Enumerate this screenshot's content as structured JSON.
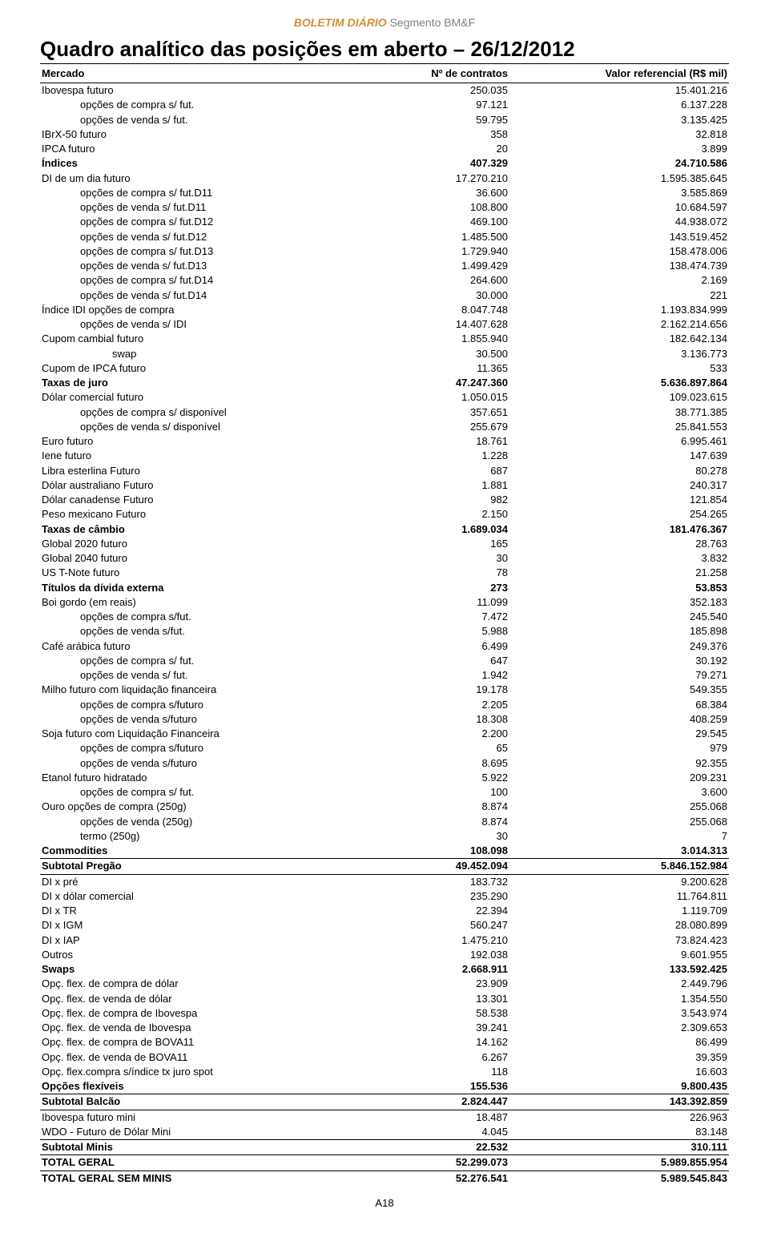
{
  "header": {
    "brand": "BOLETIM DIÁRIO",
    "segment": " Segmento BM&F"
  },
  "title": "Quadro analítico das posições em aberto – 26/12/2012",
  "columns": {
    "c0": "Mercado",
    "c1": "Nº de contratos",
    "c2": "Valor referencial (R$ mil)"
  },
  "footer": "A18",
  "rows": [
    {
      "label": "Ibovespa futuro",
      "v1": "250.035",
      "v2": "15.401.216",
      "indent": 0,
      "bold": false,
      "sep": false
    },
    {
      "label": "opções de compra s/ fut.",
      "v1": "97.121",
      "v2": "6.137.228",
      "indent": 1,
      "bold": false,
      "sep": false
    },
    {
      "label": "opções de venda s/ fut.",
      "v1": "59.795",
      "v2": "3.135.425",
      "indent": 1,
      "bold": false,
      "sep": false
    },
    {
      "label": "IBrX-50 futuro",
      "v1": "358",
      "v2": "32.818",
      "indent": 0,
      "bold": false,
      "sep": false
    },
    {
      "label": "IPCA futuro",
      "v1": "20",
      "v2": "3.899",
      "indent": 0,
      "bold": false,
      "sep": false
    },
    {
      "label": "Índices",
      "v1": "407.329",
      "v2": "24.710.586",
      "indent": 0,
      "bold": true,
      "sep": false
    },
    {
      "label": "DI de um dia futuro",
      "v1": "17.270.210",
      "v2": "1.595.385.645",
      "indent": 0,
      "bold": false,
      "sep": false
    },
    {
      "label": "opções de compra s/ fut.D11",
      "v1": "36.600",
      "v2": "3.585.869",
      "indent": 1,
      "bold": false,
      "sep": false
    },
    {
      "label": "opções de venda s/ fut.D11",
      "v1": "108.800",
      "v2": "10.684.597",
      "indent": 1,
      "bold": false,
      "sep": false
    },
    {
      "label": "opções de compra s/ fut.D12",
      "v1": "469.100",
      "v2": "44.938.072",
      "indent": 1,
      "bold": false,
      "sep": false
    },
    {
      "label": "opções de venda s/ fut.D12",
      "v1": "1.485.500",
      "v2": "143.519.452",
      "indent": 1,
      "bold": false,
      "sep": false
    },
    {
      "label": "opções de compra s/ fut.D13",
      "v1": "1.729.940",
      "v2": "158.478.006",
      "indent": 1,
      "bold": false,
      "sep": false
    },
    {
      "label": "opções de venda s/ fut.D13",
      "v1": "1.499.429",
      "v2": "138.474.739",
      "indent": 1,
      "bold": false,
      "sep": false
    },
    {
      "label": "opções de compra s/ fut.D14",
      "v1": "264.600",
      "v2": "2.169",
      "indent": 1,
      "bold": false,
      "sep": false
    },
    {
      "label": "opções de venda s/ fut.D14",
      "v1": "30.000",
      "v2": "221",
      "indent": 1,
      "bold": false,
      "sep": false
    },
    {
      "label": "Índice IDI opções de compra",
      "v1": "8.047.748",
      "v2": "1.193.834.999",
      "indent": 0,
      "bold": false,
      "sep": false
    },
    {
      "label": "opções de venda s/ IDI",
      "v1": "14.407.628",
      "v2": "2.162.214.656",
      "indent": 1,
      "bold": false,
      "sep": false
    },
    {
      "label": "Cupom cambial futuro",
      "v1": "1.855.940",
      "v2": "182.642.134",
      "indent": 0,
      "bold": false,
      "sep": false
    },
    {
      "label": "swap",
      "v1": "30.500",
      "v2": "3.136.773",
      "indent": 2,
      "bold": false,
      "sep": false
    },
    {
      "label": "Cupom de IPCA futuro",
      "v1": "11.365",
      "v2": "533",
      "indent": 0,
      "bold": false,
      "sep": false
    },
    {
      "label": "Taxas de juro",
      "v1": "47.247.360",
      "v2": "5.636.897.864",
      "indent": 0,
      "bold": true,
      "sep": false
    },
    {
      "label": "Dólar comercial futuro",
      "v1": "1.050.015",
      "v2": "109.023.615",
      "indent": 0,
      "bold": false,
      "sep": false
    },
    {
      "label": "opções de compra s/ disponível",
      "v1": "357.651",
      "v2": "38.771.385",
      "indent": 1,
      "bold": false,
      "sep": false
    },
    {
      "label": "opções de venda s/ disponível",
      "v1": "255.679",
      "v2": "25.841.553",
      "indent": 1,
      "bold": false,
      "sep": false
    },
    {
      "label": "Euro futuro",
      "v1": "18.761",
      "v2": "6.995.461",
      "indent": 0,
      "bold": false,
      "sep": false
    },
    {
      "label": "Iene futuro",
      "v1": "1.228",
      "v2": "147.639",
      "indent": 0,
      "bold": false,
      "sep": false
    },
    {
      "label": "Libra esterlina Futuro",
      "v1": "687",
      "v2": "80.278",
      "indent": 0,
      "bold": false,
      "sep": false
    },
    {
      "label": "Dólar australiano Futuro",
      "v1": "1.881",
      "v2": "240.317",
      "indent": 0,
      "bold": false,
      "sep": false
    },
    {
      "label": "Dólar canadense Futuro",
      "v1": "982",
      "v2": "121.854",
      "indent": 0,
      "bold": false,
      "sep": false
    },
    {
      "label": "Peso mexicano Futuro",
      "v1": "2.150",
      "v2": "254.265",
      "indent": 0,
      "bold": false,
      "sep": false
    },
    {
      "label": "Taxas de câmbio",
      "v1": "1.689.034",
      "v2": "181.476.367",
      "indent": 0,
      "bold": true,
      "sep": false
    },
    {
      "label": "Global 2020 futuro",
      "v1": "165",
      "v2": "28.763",
      "indent": 0,
      "bold": false,
      "sep": false
    },
    {
      "label": "Global 2040 futuro",
      "v1": "30",
      "v2": "3.832",
      "indent": 0,
      "bold": false,
      "sep": false
    },
    {
      "label": "US T-Note futuro",
      "v1": "78",
      "v2": "21.258",
      "indent": 0,
      "bold": false,
      "sep": false
    },
    {
      "label": "Títulos da dívida externa",
      "v1": "273",
      "v2": "53.853",
      "indent": 0,
      "bold": true,
      "sep": false
    },
    {
      "label": "Boi gordo (em reais)",
      "v1": "11.099",
      "v2": "352.183",
      "indent": 0,
      "bold": false,
      "sep": false
    },
    {
      "label": "opções de compra s/fut.",
      "v1": "7.472",
      "v2": "245.540",
      "indent": 1,
      "bold": false,
      "sep": false
    },
    {
      "label": "opções de venda s/fut.",
      "v1": "5.988",
      "v2": "185.898",
      "indent": 1,
      "bold": false,
      "sep": false
    },
    {
      "label": "Café arábica futuro",
      "v1": "6.499",
      "v2": "249.376",
      "indent": 0,
      "bold": false,
      "sep": false
    },
    {
      "label": "opções de compra s/ fut.",
      "v1": "647",
      "v2": "30.192",
      "indent": 1,
      "bold": false,
      "sep": false
    },
    {
      "label": "opções de venda s/ fut.",
      "v1": "1.942",
      "v2": "79.271",
      "indent": 1,
      "bold": false,
      "sep": false
    },
    {
      "label": "Milho futuro com liquidação financeira",
      "v1": "19.178",
      "v2": "549.355",
      "indent": 0,
      "bold": false,
      "sep": false
    },
    {
      "label": "opções de compra s/futuro",
      "v1": "2.205",
      "v2": "68.384",
      "indent": 1,
      "bold": false,
      "sep": false
    },
    {
      "label": "opções de venda s/futuro",
      "v1": "18.308",
      "v2": "408.259",
      "indent": 1,
      "bold": false,
      "sep": false
    },
    {
      "label": "Soja futuro com Liquidação Financeira",
      "v1": "2.200",
      "v2": "29.545",
      "indent": 0,
      "bold": false,
      "sep": false
    },
    {
      "label": "opções de compra s/futuro",
      "v1": "65",
      "v2": "979",
      "indent": 1,
      "bold": false,
      "sep": false
    },
    {
      "label": "opções de venda s/futuro",
      "v1": "8.695",
      "v2": "92.355",
      "indent": 1,
      "bold": false,
      "sep": false
    },
    {
      "label": "Etanol futuro hidratado",
      "v1": "5.922",
      "v2": "209.231",
      "indent": 0,
      "bold": false,
      "sep": false
    },
    {
      "label": "opções de compra s/ fut.",
      "v1": "100",
      "v2": "3.600",
      "indent": 1,
      "bold": false,
      "sep": false
    },
    {
      "label": "Ouro opções de compra (250g)",
      "v1": "8.874",
      "v2": "255.068",
      "indent": 0,
      "bold": false,
      "sep": false
    },
    {
      "label": "opções de venda (250g)",
      "v1": "8.874",
      "v2": "255.068",
      "indent": 1,
      "bold": false,
      "sep": false
    },
    {
      "label": "termo (250g)",
      "v1": "30",
      "v2": "7",
      "indent": 1,
      "bold": false,
      "sep": false
    },
    {
      "label": "Commodities",
      "v1": "108.098",
      "v2": "3.014.313",
      "indent": 0,
      "bold": true,
      "sep": false
    },
    {
      "label": "Subtotal Pregão",
      "v1": "49.452.094",
      "v2": "5.846.152.984",
      "indent": 0,
      "bold": true,
      "sep": true
    },
    {
      "label": "DI x pré",
      "v1": "183.732",
      "v2": "9.200.628",
      "indent": 0,
      "bold": false,
      "sep": true
    },
    {
      "label": "DI x dólar comercial",
      "v1": "235.290",
      "v2": "11.764.811",
      "indent": 0,
      "bold": false,
      "sep": false
    },
    {
      "label": "DI x TR",
      "v1": "22.394",
      "v2": "1.119.709",
      "indent": 0,
      "bold": false,
      "sep": false
    },
    {
      "label": "DI x IGM",
      "v1": "560.247",
      "v2": "28.080.899",
      "indent": 0,
      "bold": false,
      "sep": false
    },
    {
      "label": "DI x IAP",
      "v1": "1.475.210",
      "v2": "73.824.423",
      "indent": 0,
      "bold": false,
      "sep": false
    },
    {
      "label": "Outros",
      "v1": "192.038",
      "v2": "9.601.955",
      "indent": 0,
      "bold": false,
      "sep": false
    },
    {
      "label": "Swaps",
      "v1": "2.668.911",
      "v2": "133.592.425",
      "indent": 0,
      "bold": true,
      "sep": false
    },
    {
      "label": "Opç. flex. de compra de dólar",
      "v1": "23.909",
      "v2": "2.449.796",
      "indent": 0,
      "bold": false,
      "sep": false
    },
    {
      "label": "Opç. flex. de venda de dólar",
      "v1": "13.301",
      "v2": "1.354.550",
      "indent": 0,
      "bold": false,
      "sep": false
    },
    {
      "label": "Opç. flex. de compra de Ibovespa",
      "v1": "58.538",
      "v2": "3.543.974",
      "indent": 0,
      "bold": false,
      "sep": false
    },
    {
      "label": "Opç. flex. de venda de Ibovespa",
      "v1": "39.241",
      "v2": "2.309.653",
      "indent": 0,
      "bold": false,
      "sep": false
    },
    {
      "label": "Opç. flex. de compra de BOVA11",
      "v1": "14.162",
      "v2": "86.499",
      "indent": 0,
      "bold": false,
      "sep": false
    },
    {
      "label": "Opç. flex. de venda de BOVA11",
      "v1": "6.267",
      "v2": "39.359",
      "indent": 0,
      "bold": false,
      "sep": false
    },
    {
      "label": "Opç. flex.compra s/índice tx juro spot",
      "v1": "118",
      "v2": "16.603",
      "indent": 0,
      "bold": false,
      "sep": false
    },
    {
      "label": "Opções flexíveis",
      "v1": "155.536",
      "v2": "9.800.435",
      "indent": 0,
      "bold": true,
      "sep": false
    },
    {
      "label": "Subtotal Balcão",
      "v1": "2.824.447",
      "v2": "143.392.859",
      "indent": 0,
      "bold": true,
      "sep": true
    },
    {
      "label": "Ibovespa futuro mini",
      "v1": "18.487",
      "v2": "226.963",
      "indent": 0,
      "bold": false,
      "sep": true
    },
    {
      "label": "WDO - Futuro de Dólar Mini",
      "v1": "4.045",
      "v2": "83.148",
      "indent": 0,
      "bold": false,
      "sep": false
    },
    {
      "label": "Subtotal Minis",
      "v1": "22.532",
      "v2": "310.111",
      "indent": 0,
      "bold": true,
      "sep": true
    },
    {
      "label": "TOTAL GERAL",
      "v1": "52.299.073",
      "v2": "5.989.855.954",
      "indent": 0,
      "bold": true,
      "sep": true
    },
    {
      "label": "TOTAL GERAL SEM MINIS",
      "v1": "52.276.541",
      "v2": "5.989.545.843",
      "indent": 0,
      "bold": true,
      "sep": true
    }
  ]
}
